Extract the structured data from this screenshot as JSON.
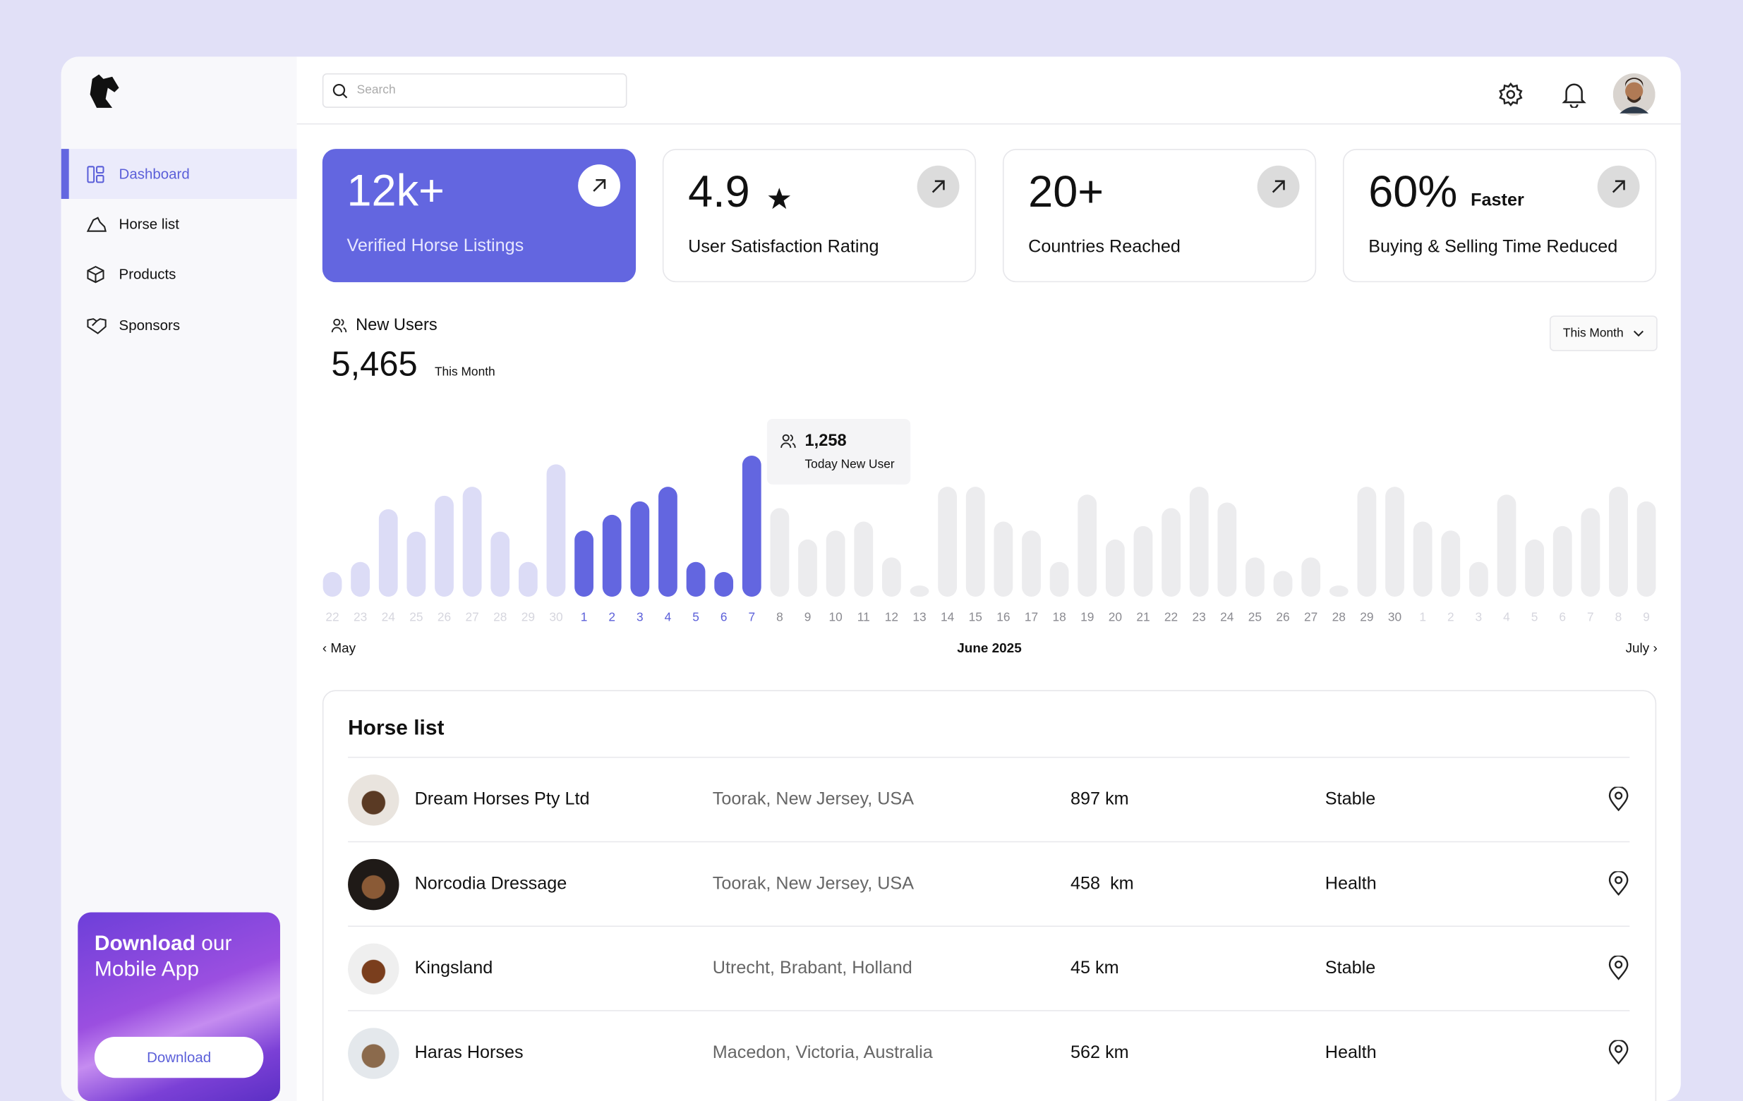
{
  "sidebar": {
    "nav": [
      "Dashboard",
      "Horse list",
      "Products",
      "Sponsors"
    ],
    "promo": {
      "title_bold": "Download",
      "title_rest": "our",
      "title_line2": "Mobile App",
      "button": "Download"
    }
  },
  "header": {
    "search_placeholder": "Search"
  },
  "stats": [
    {
      "value": "12k+",
      "label": "Verified Horse Listings"
    },
    {
      "value": "4.9",
      "label": "User Satisfaction Rating"
    },
    {
      "value": "20+",
      "label": "Countries Reached"
    },
    {
      "value": "60%",
      "suffix": "Faster",
      "label": "Buying & Selling Time Reduced"
    }
  ],
  "new_users": {
    "title": "New Users",
    "total": "5,465",
    "period": "This Month",
    "filter": "This Month",
    "tooltip": {
      "value": "1,258",
      "label": "Today New User"
    },
    "chart": {
      "type": "bar",
      "segments": [
        {
          "color": "#dcdcf6",
          "label_color": "#d6d6de",
          "x": [
            22,
            23,
            24,
            25,
            26,
            27,
            28,
            29,
            30
          ],
          "values": [
            220,
            310,
            780,
            580,
            900,
            980,
            580,
            310,
            1180
          ]
        },
        {
          "color": "#6366e0",
          "label_color": "#5b5fd9",
          "x": [
            1,
            2,
            3,
            4,
            5,
            6,
            7
          ],
          "values": [
            590,
            730,
            850,
            980,
            310,
            220,
            1258
          ]
        },
        {
          "color": "#ececee",
          "label_color": "#8a8a90",
          "x": [
            8,
            9,
            10,
            11,
            12,
            13,
            14,
            15,
            16,
            17,
            18,
            19,
            20,
            21,
            22,
            23,
            24,
            25,
            26,
            27,
            28,
            29,
            30
          ],
          "values": [
            790,
            510,
            590,
            670,
            350,
            100,
            980,
            980,
            670,
            590,
            310,
            910,
            510,
            630,
            790,
            980,
            840,
            350,
            230,
            350,
            100,
            980,
            980
          ]
        },
        {
          "color": "#ececee",
          "label_color": "#d6d6de",
          "x": [
            1,
            2,
            3,
            4,
            5,
            6,
            7,
            8,
            9
          ],
          "values": [
            670,
            590,
            310,
            910,
            510,
            630,
            790,
            980,
            850
          ]
        }
      ]
    },
    "nav": {
      "prev": "May",
      "current": "June 2025",
      "next": "July"
    }
  },
  "horse_list": {
    "title": "Horse list",
    "rows": [
      [
        "Dream Horses Pty Ltd",
        "Toorak, New Jersey, USA",
        "897 km",
        "Stable"
      ],
      [
        "Norcodia Dressage",
        "Toorak, New Jersey, USA",
        "458  km",
        "Health"
      ],
      [
        "Kingsland",
        "Utrecht, Brabant, Holland",
        "45 km",
        "Stable"
      ],
      [
        "Haras Horses",
        "Macedon, Victoria, Australia",
        "562 km",
        "Health"
      ]
    ]
  }
}
